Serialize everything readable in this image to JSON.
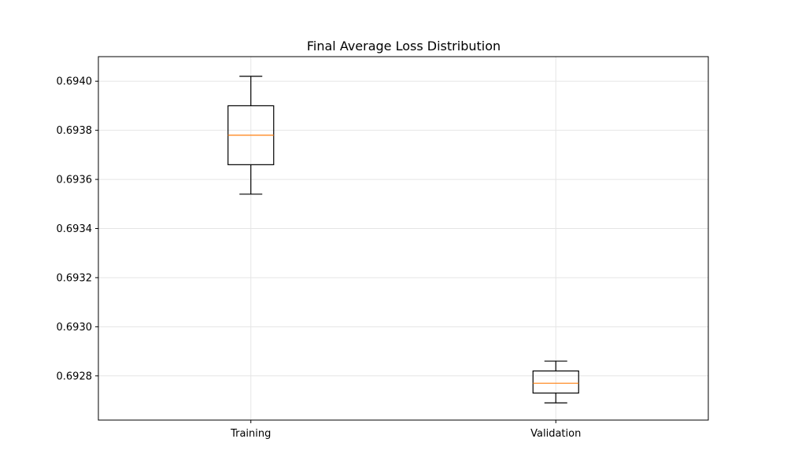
{
  "chart_data": {
    "type": "box",
    "title": "Final Average Loss Distribution",
    "xlabel": "",
    "ylabel": "",
    "categories": [
      "Training",
      "Validation"
    ],
    "boxes": [
      {
        "category": "Training",
        "whisker_low": 0.69354,
        "q1": 0.69366,
        "median": 0.69378,
        "q3": 0.6939,
        "whisker_high": 0.69402
      },
      {
        "category": "Validation",
        "whisker_low": 0.69269,
        "q1": 0.69273,
        "median": 0.69277,
        "q3": 0.69282,
        "whisker_high": 0.69286
      }
    ],
    "ylim": [
      0.69262,
      0.6941
    ],
    "yticks": [
      0.6928,
      0.693,
      0.6932,
      0.6934,
      0.6936,
      0.6938,
      0.694
    ],
    "ytick_labels": [
      "0.6928",
      "0.6930",
      "0.6932",
      "0.6934",
      "0.6936",
      "0.6938",
      "0.6940"
    ],
    "grid": true,
    "legend": "none",
    "colors": {
      "box": "#000000",
      "median": "#ff7f0e",
      "grid": "#e5e5e5",
      "axis": "#000000"
    }
  }
}
